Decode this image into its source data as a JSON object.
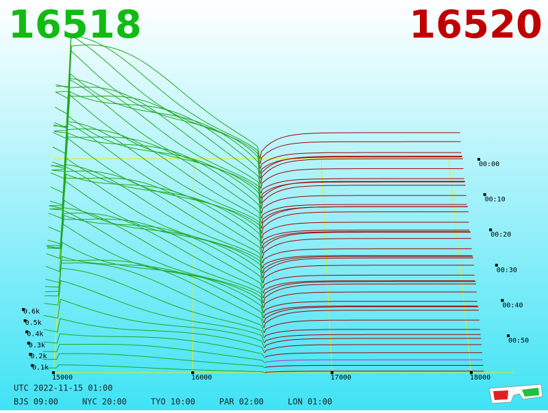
{
  "header": {
    "bid": 16518,
    "ask": 16520
  },
  "price_axis": {
    "ticks": [
      15000,
      16000,
      17000,
      18000
    ]
  },
  "depth_axis": {
    "ticks": [
      {
        "value": 100,
        "label": "0.1k"
      },
      {
        "value": 200,
        "label": "0.2k"
      },
      {
        "value": 300,
        "label": "0.3k"
      },
      {
        "value": 400,
        "label": "0.4k"
      },
      {
        "value": 500,
        "label": "0.5k"
      },
      {
        "value": 600,
        "label": "0.6k"
      }
    ]
  },
  "time_axis": {
    "ticks": [
      "00:00",
      "00:10",
      "00:20",
      "00:30",
      "00:40",
      "00:50"
    ]
  },
  "clock": {
    "utc": "UTC 2022-11-15 01:00",
    "zones": [
      "BJS 09:00",
      "NYC 20:00",
      "TYO 10:00",
      "PAR 02:00",
      "LON 01:00"
    ]
  }
}
